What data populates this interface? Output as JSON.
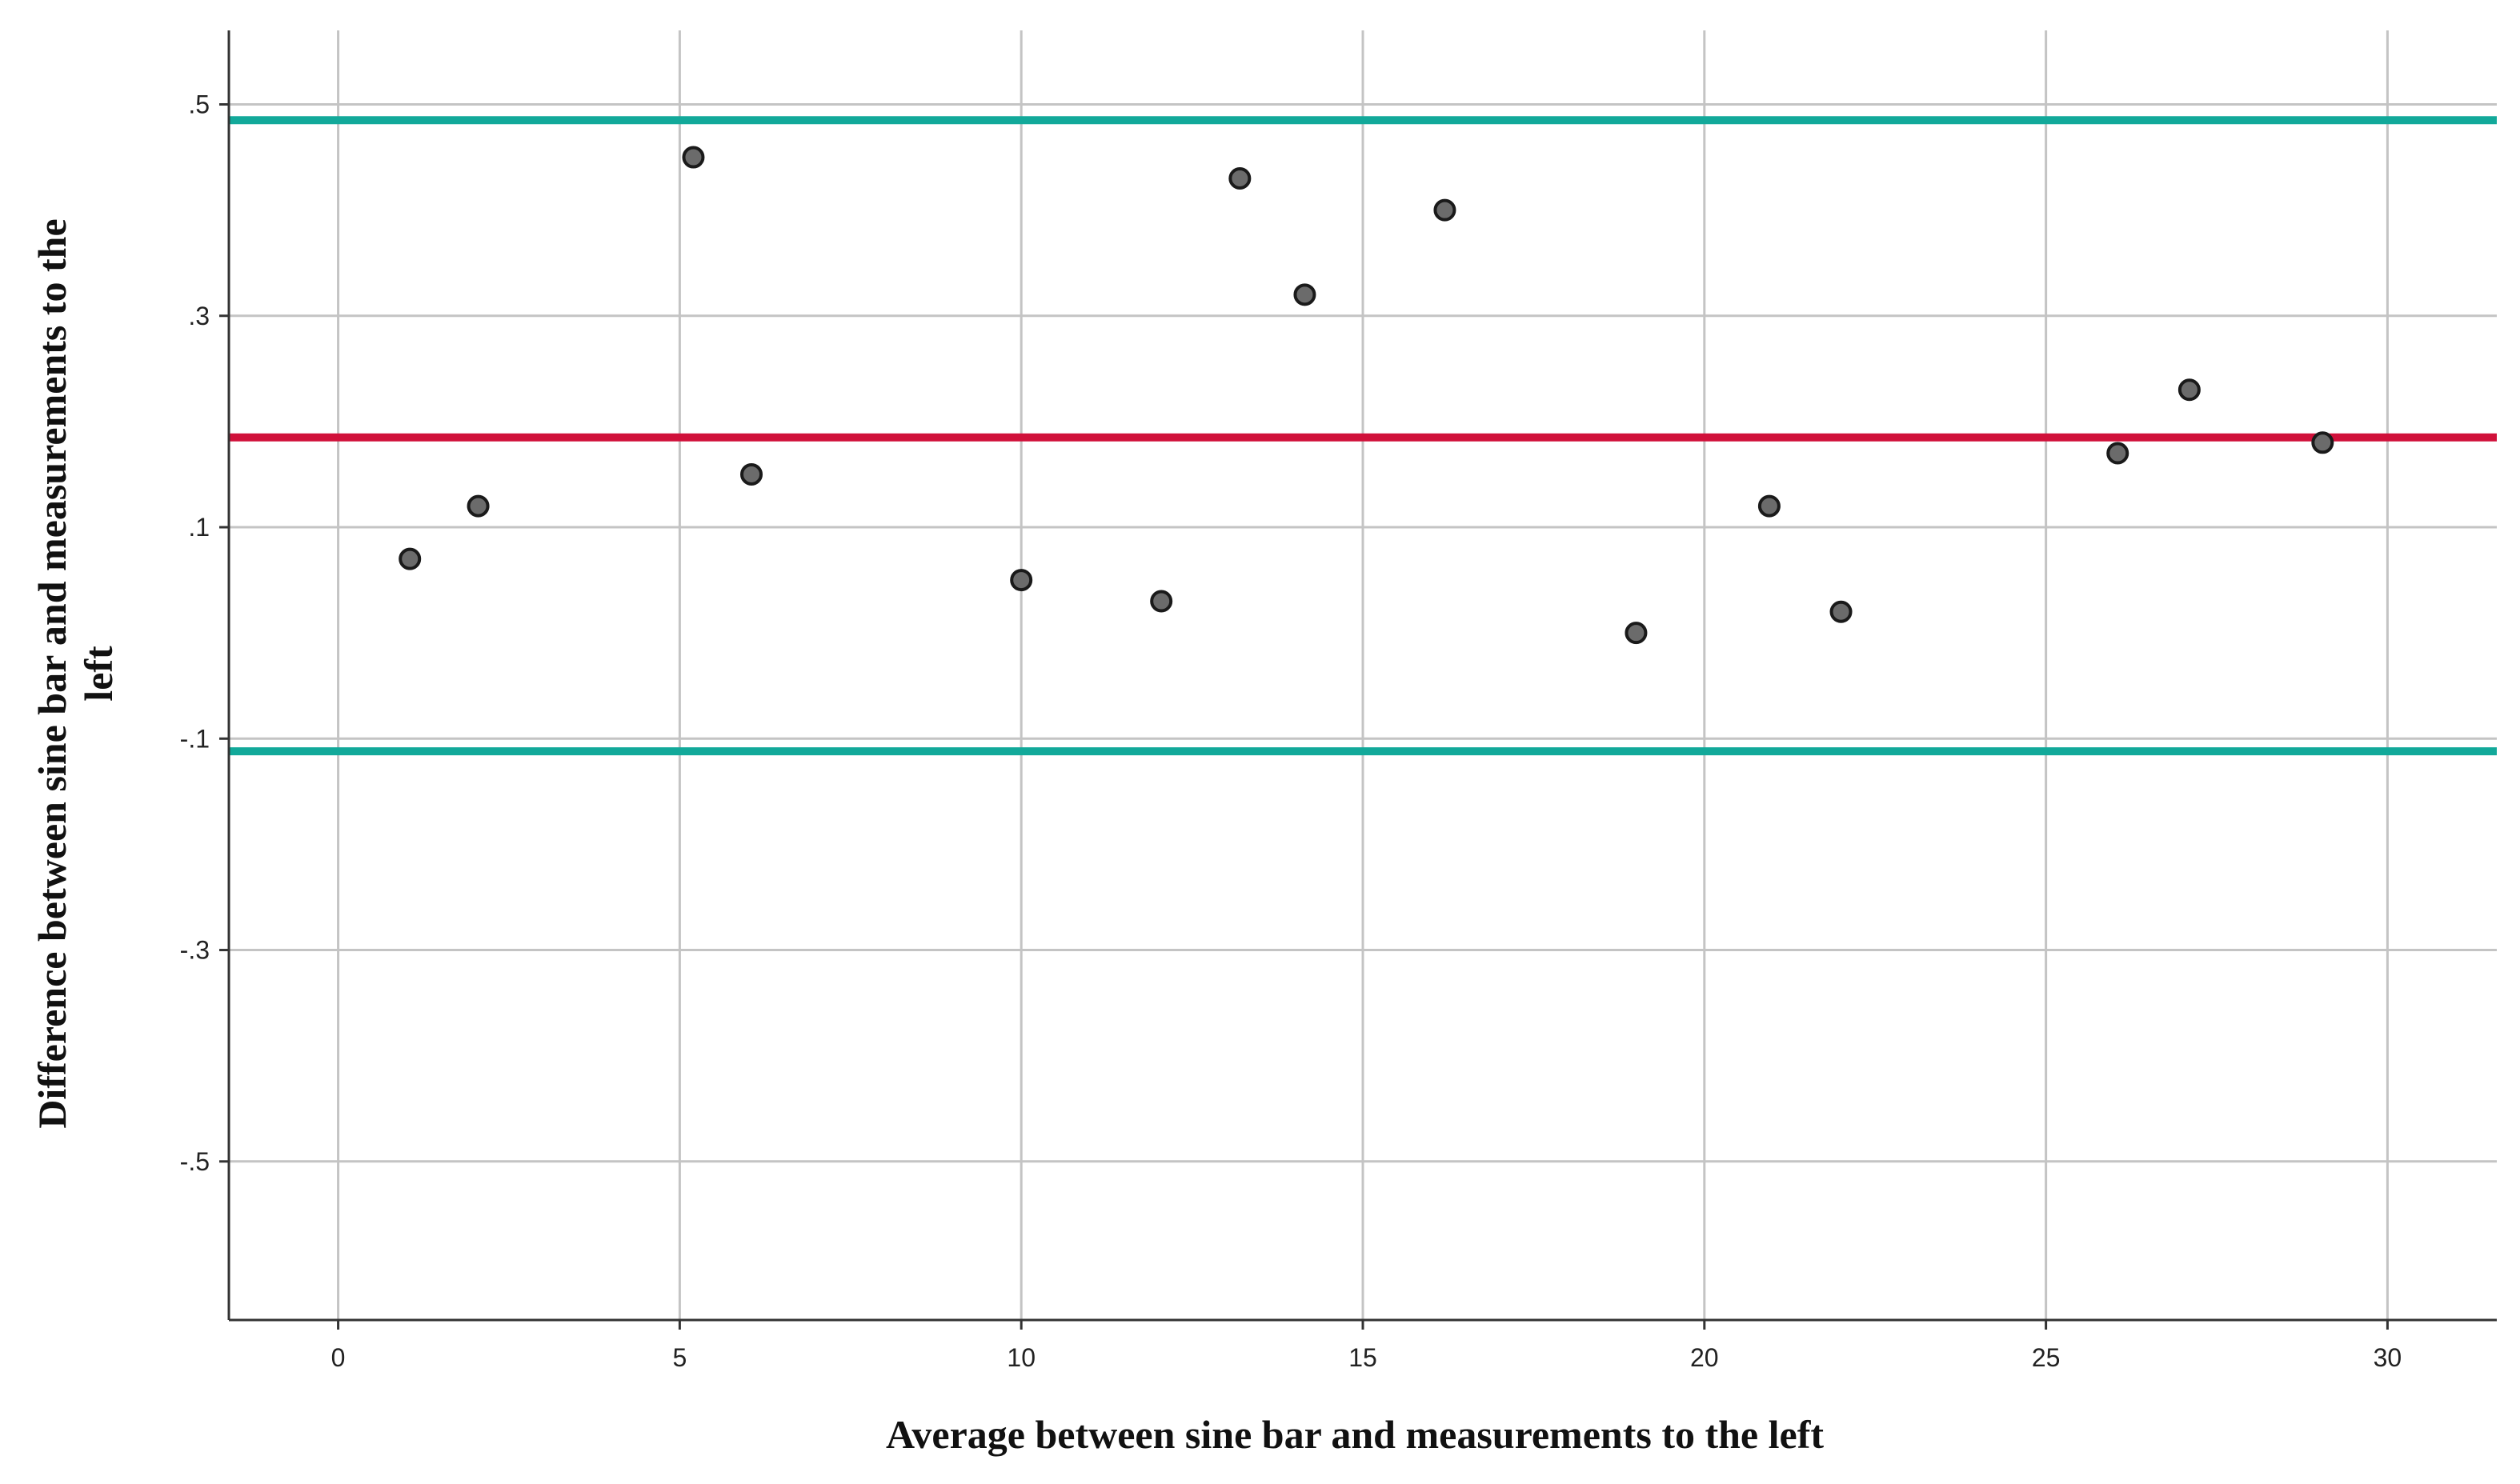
{
  "chart_data": {
    "type": "scatter",
    "title": "",
    "xlabel": "Average between sine bar and measurements to the left",
    "ylabel_lines": [
      "Difference between sine bar and measurements to the",
      "left"
    ],
    "xlim": [
      -1.6,
      31.6
    ],
    "ylim": [
      -0.65,
      0.57
    ],
    "xticks": [
      0,
      5,
      10,
      15,
      20,
      25,
      30
    ],
    "xtick_labels": [
      "0",
      "5",
      "10",
      "15",
      "20",
      "25",
      "30"
    ],
    "yticks": [
      0.5,
      0.3,
      0.1,
      -0.1,
      -0.3,
      -0.5
    ],
    "ytick_labels": [
      ".5",
      ".3",
      ".1",
      "-.1",
      "-.3",
      "-.5"
    ],
    "grid": true,
    "points": [
      {
        "x": 1.05,
        "y": 0.07
      },
      {
        "x": 2.05,
        "y": 0.12
      },
      {
        "x": 5.2,
        "y": 0.45
      },
      {
        "x": 6.05,
        "y": 0.15
      },
      {
        "x": 10.0,
        "y": 0.05
      },
      {
        "x": 12.05,
        "y": 0.03
      },
      {
        "x": 13.2,
        "y": 0.43
      },
      {
        "x": 14.15,
        "y": 0.32
      },
      {
        "x": 16.2,
        "y": 0.4
      },
      {
        "x": 19.0,
        "y": 0.0
      },
      {
        "x": 20.95,
        "y": 0.12
      },
      {
        "x": 22.0,
        "y": 0.02
      },
      {
        "x": 26.05,
        "y": 0.17
      },
      {
        "x": 27.1,
        "y": 0.23
      },
      {
        "x": 29.05,
        "y": 0.18
      }
    ],
    "reference_lines": [
      {
        "role": "upper-limit",
        "y": 0.485,
        "color": "#12a99a"
      },
      {
        "role": "mean",
        "y": 0.185,
        "color": "#d0103a"
      },
      {
        "role": "lower-limit",
        "y": -0.112,
        "color": "#12a99a"
      }
    ]
  }
}
